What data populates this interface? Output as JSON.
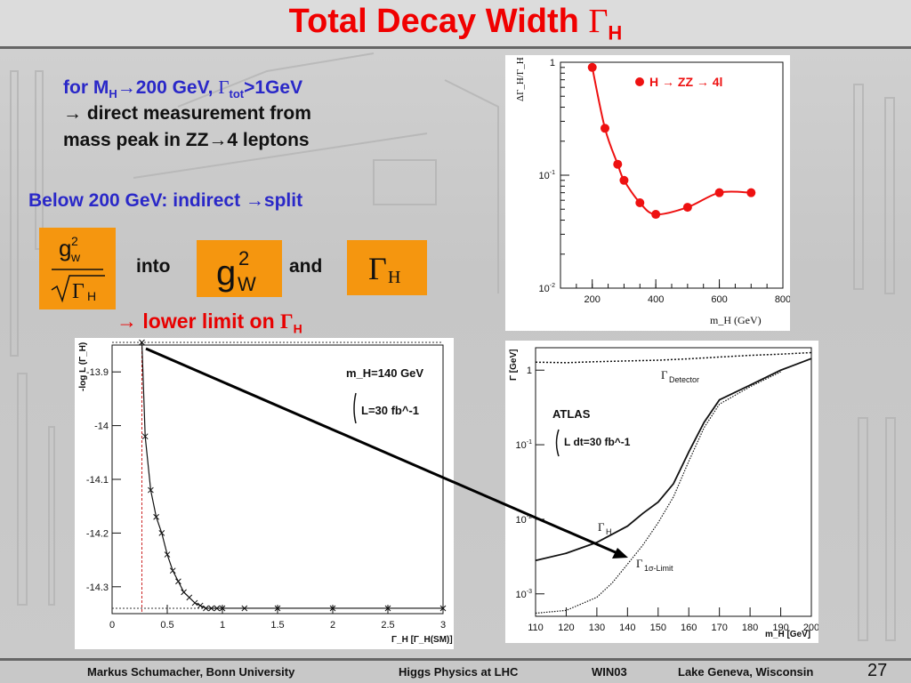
{
  "slide": {
    "title": "Total Decay Width ",
    "title_symbol": "Γ",
    "title_sub": "H",
    "bullet1_line1_a": "for M",
    "bullet1_line1_sub": "H",
    "bullet1_line1_b": "→200 GeV, ",
    "bullet1_line1_gamma": "Γ",
    "bullet1_line1_sub2": "tot",
    "bullet1_line1_c": ">1GeV",
    "bullet1_line2": "→ direct measurement from",
    "bullet1_line3": "mass peak in ZZ→4 leptons",
    "bullet2": "Below 200 GeV: indirect →split",
    "into_label": "into",
    "and_label": "and",
    "lower_limit_a": "→ lower limit on ",
    "lower_limit_gamma": "Γ",
    "lower_limit_sub": "H",
    "box1_num": "g",
    "box1_num_sup": "2",
    "box1_num_sub": "w",
    "box1_den": "Γ",
    "box1_den_sub": "H",
    "box2_main": "g",
    "box2_sup": "2",
    "box2_sub": "W",
    "box3_main": "Γ",
    "box3_sub": "H",
    "page_number": "27"
  },
  "footer": {
    "author": "Markus Schumacher,  Bonn University",
    "talk": "Higgs Physics at LHC",
    "event": "WIN03",
    "place": "Lake Geneva, Wisconsin"
  },
  "colors": {
    "title": "#f00000",
    "blue_text": "#2a28c8",
    "box": "#f5960f",
    "marker": "#ee1111"
  },
  "chart_data": [
    {
      "type": "line",
      "legend": "H → ZZ → 4l",
      "ylabel": "ΔΓ_H/Γ_H",
      "xlabel": "m_H (GeV)",
      "xlim": [
        100,
        800
      ],
      "ylim": [
        0.01,
        1
      ],
      "yscale": "log",
      "x_ticks": [
        "200",
        "400",
        "600",
        "800"
      ],
      "y_ticks": [
        "1",
        "10^-1",
        "10^-2"
      ],
      "x": [
        200,
        240,
        280,
        300,
        350,
        400,
        500,
        600,
        700
      ],
      "y": [
        0.9,
        0.26,
        0.125,
        0.09,
        0.057,
        0.045,
        0.052,
        0.07,
        0.07
      ]
    },
    {
      "type": "line",
      "annotation_line1": "m_H=140 GeV",
      "annotation_line2": "L=30 fb^-1",
      "ylabel": "-log L (Γ_H)",
      "xlabel": "Γ_H [Γ_H(SM)]",
      "xlim": [
        0,
        3
      ],
      "ylim": [
        -14.35,
        -13.85
      ],
      "x_ticks": [
        "0",
        "0.5",
        "1",
        "1.5",
        "2",
        "2.5",
        "3"
      ],
      "y_ticks": [
        "-13.9",
        "-14",
        "-14.1",
        "-14.2",
        "-14.3"
      ],
      "x": [
        0.27,
        0.3,
        0.35,
        0.4,
        0.45,
        0.5,
        0.55,
        0.6,
        0.65,
        0.7,
        0.75,
        0.8,
        0.85,
        0.9,
        0.95,
        1.0,
        1.2,
        1.5,
        2.0,
        2.5,
        3.0
      ],
      "y": [
        -13.845,
        -14.02,
        -14.12,
        -14.17,
        -14.2,
        -14.24,
        -14.27,
        -14.29,
        -14.31,
        -14.32,
        -14.33,
        -14.335,
        -14.34,
        -14.34,
        -14.34,
        -14.34,
        -14.34,
        -14.34,
        -14.34,
        -14.34,
        -14.34
      ]
    },
    {
      "type": "line",
      "ylabel": "Γ [GeV]",
      "xlabel": "m_H [GeV]",
      "annotation_atlas": "ATLAS",
      "annotation_lumi": "L dt=30 fb^-1",
      "xlim": [
        110,
        200
      ],
      "ylim": [
        0.0005,
        2
      ],
      "yscale": "log",
      "x_ticks": [
        "110",
        "120",
        "130",
        "140",
        "150",
        "160",
        "170",
        "180",
        "190",
        "200"
      ],
      "y_ticks": [
        "1",
        "10^-1",
        "10^-2",
        "10^-3"
      ],
      "series": [
        {
          "name": "Γ_Detector",
          "x": [
            110,
            120,
            130,
            140,
            150,
            160,
            170,
            180,
            190,
            200
          ],
          "y": [
            1.28,
            1.26,
            1.3,
            1.33,
            1.36,
            1.42,
            1.5,
            1.58,
            1.64,
            1.72
          ]
        },
        {
          "name": "Γ_H",
          "x": [
            110,
            120,
            130,
            140,
            145,
            150,
            155,
            160,
            165,
            170,
            180,
            190,
            200
          ],
          "y": [
            0.0028,
            0.0035,
            0.0049,
            0.0081,
            0.012,
            0.017,
            0.03,
            0.08,
            0.2,
            0.4,
            0.63,
            1.0,
            1.43
          ]
        },
        {
          "name": "Γ_1σ-Limit",
          "x": [
            110,
            120,
            130,
            135,
            140,
            145,
            150,
            155,
            160,
            165,
            170,
            180,
            190
          ],
          "y": [
            0.00055,
            0.0006,
            0.0009,
            0.0014,
            0.0025,
            0.0045,
            0.009,
            0.02,
            0.06,
            0.17,
            0.35,
            0.6,
            0.95
          ]
        }
      ],
      "label_detector_main": "Γ",
      "label_detector_sub": "Detector",
      "label_h_main": "Γ",
      "label_h_sub": "H",
      "label_limit_main": "Γ",
      "label_limit_sub": "1σ-Limit"
    }
  ]
}
